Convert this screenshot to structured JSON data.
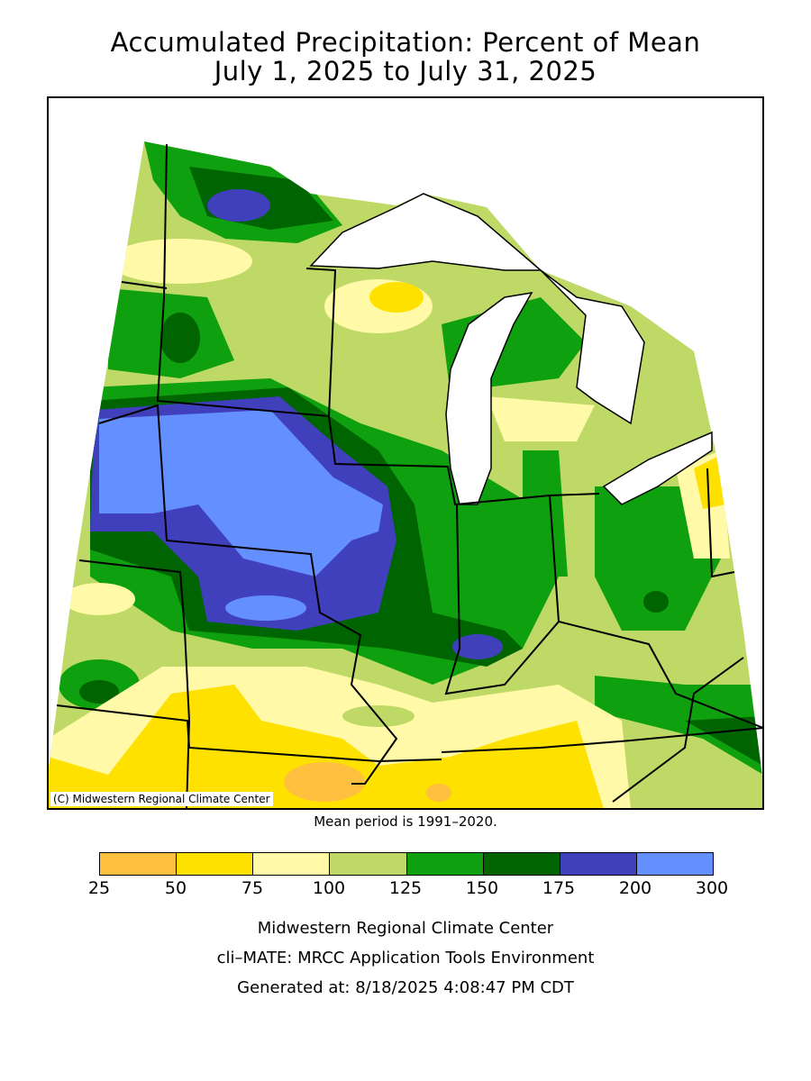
{
  "title": {
    "line1": "Accumulated Precipitation: Percent of Mean",
    "line2": "July 1, 2025 to July 31, 2025"
  },
  "map": {
    "copyright": "(C) Midwestern Regional Climate Center"
  },
  "mean_period": "Mean period is 1991–2020.",
  "legend": {
    "ticks": [
      "25",
      "50",
      "75",
      "100",
      "125",
      "150",
      "175",
      "200",
      "300"
    ],
    "colors": [
      "#ffbf3f",
      "#ffe100",
      "#fff9a8",
      "#bed966",
      "#0fa00f",
      "#006400",
      "#4040bc",
      "#6490ff"
    ]
  },
  "footer": {
    "line1": "Midwestern Regional Climate Center",
    "line2": "cli–MATE: MRCC Application Tools Environment",
    "line3": "Generated at: 8/18/2025 4:08:47 PM CDT"
  }
}
